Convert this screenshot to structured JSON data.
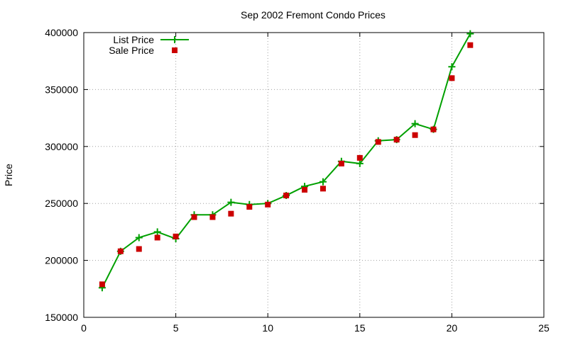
{
  "chart_data": {
    "type": "line",
    "title": "Sep 2002 Fremont Condo Prices",
    "xlabel": "",
    "ylabel": "Price",
    "xlim": [
      0,
      25
    ],
    "ylim": [
      150000,
      400000
    ],
    "xticks": [
      0,
      5,
      10,
      15,
      20,
      25
    ],
    "yticks": [
      150000,
      200000,
      250000,
      300000,
      350000,
      400000
    ],
    "xtick_labels": [
      "0",
      "5",
      "10",
      "15",
      "20",
      "25"
    ],
    "ytick_labels": [
      "150000",
      "200000",
      "250000",
      "300000",
      "350000",
      "400000"
    ],
    "grid": true,
    "legend_position": "top-left",
    "series": [
      {
        "name": "List Price",
        "style": "line-plus",
        "color": "#00a000",
        "x": [
          1,
          2,
          3,
          4,
          5,
          6,
          7,
          8,
          9,
          10,
          11,
          12,
          13,
          14,
          15,
          16,
          17,
          18,
          19,
          20,
          21
        ],
        "values": [
          176000,
          208000,
          220000,
          225000,
          219000,
          240000,
          240000,
          251000,
          249000,
          250000,
          257000,
          265000,
          269000,
          287000,
          285000,
          305000,
          306000,
          320000,
          315000,
          370000,
          399000
        ]
      },
      {
        "name": "Sale Price",
        "style": "square-points",
        "color": "#cc0000",
        "x": [
          1,
          2,
          3,
          4,
          5,
          6,
          7,
          8,
          9,
          10,
          11,
          12,
          13,
          14,
          15,
          16,
          17,
          18,
          19,
          20,
          21
        ],
        "values": [
          179000,
          208000,
          210000,
          220000,
          221000,
          238000,
          238000,
          241000,
          247000,
          249000,
          257000,
          262000,
          263000,
          285000,
          290000,
          304000,
          306000,
          310000,
          315000,
          360000,
          389000
        ]
      }
    ]
  }
}
